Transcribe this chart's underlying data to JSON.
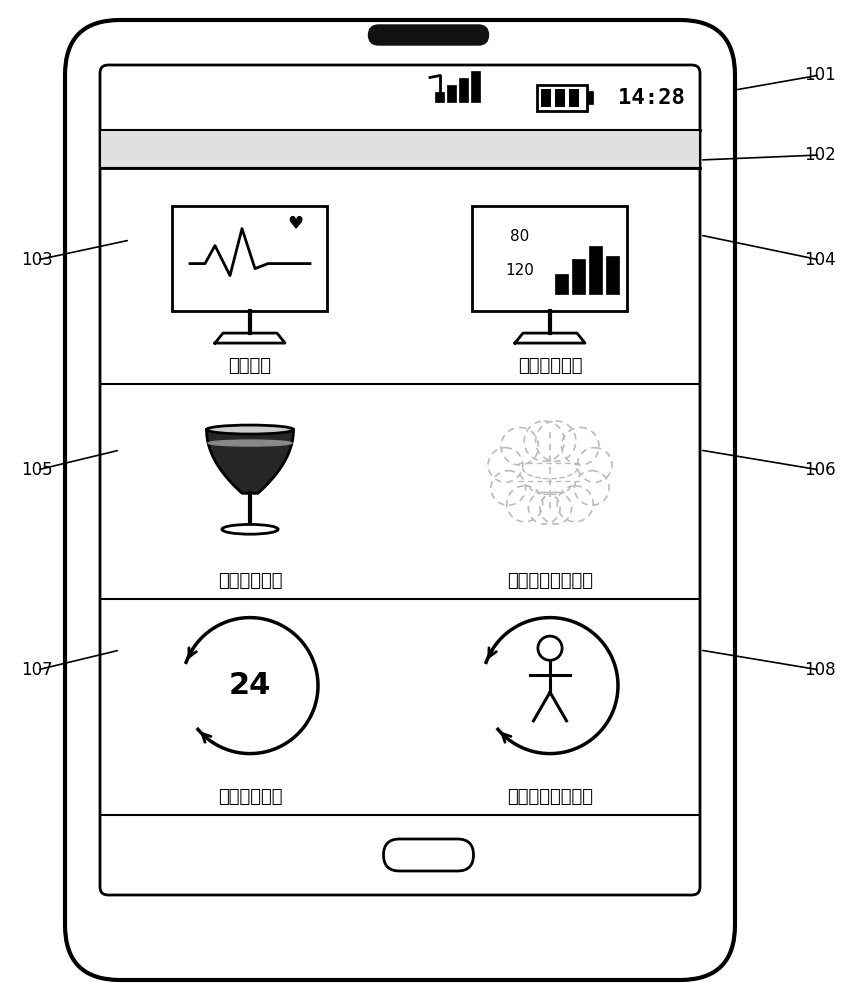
{
  "bg_color": "#ffffff",
  "time_text": "14:28",
  "section1_labels": [
    "心电监测",
    "血压分级监测"
  ],
  "section2_labels": [
    "饮酒风险监测",
    "心脑血管风险预警"
  ],
  "section3_labels": [
    "动态血压测量",
    "周围血管疾病筛查"
  ],
  "label_ids": [
    "101",
    "102",
    "103",
    "104",
    "105",
    "106",
    "107",
    "108"
  ]
}
